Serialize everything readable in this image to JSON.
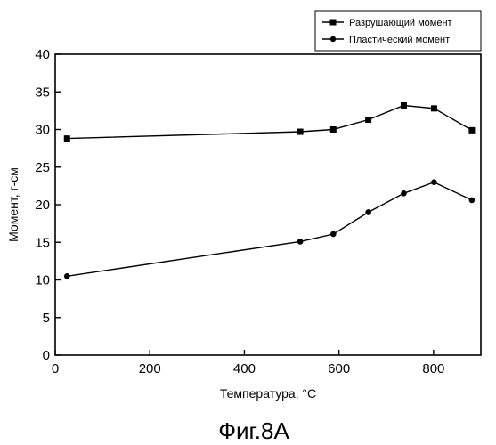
{
  "caption": "Фиг.8A",
  "chart_data": {
    "type": "line",
    "xlabel": "Температура, °C",
    "ylabel": "Момент, г-см",
    "xlim": [
      0,
      900
    ],
    "ylim": [
      0,
      40
    ],
    "xticks": [
      0,
      200,
      400,
      600,
      800
    ],
    "yticks": [
      0,
      5,
      10,
      15,
      20,
      25,
      30,
      35,
      40
    ],
    "grid": false,
    "legend_position": "top-right",
    "series": [
      {
        "name": "Разрушающий момент",
        "marker": "square",
        "color": "#000000",
        "x": [
          25,
          518,
          588,
          662,
          737,
          801,
          881
        ],
        "y": [
          28.8,
          29.7,
          30.0,
          31.3,
          33.2,
          32.8,
          29.9
        ]
      },
      {
        "name": "Пластический момент",
        "marker": "circle",
        "color": "#000000",
        "x": [
          25,
          518,
          588,
          662,
          737,
          801,
          881
        ],
        "y": [
          10.5,
          15.1,
          16.1,
          19.0,
          21.5,
          23.0,
          20.6
        ]
      }
    ]
  }
}
